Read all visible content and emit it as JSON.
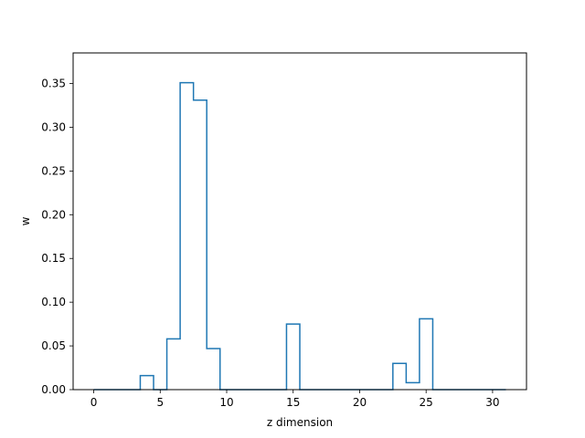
{
  "chart_data": {
    "type": "line",
    "style": "step",
    "xlabel": "z dimension",
    "ylabel": "w",
    "xlim": [
      -1.55,
      32.55
    ],
    "ylim": [
      0,
      0.385
    ],
    "xticks": [
      0,
      5,
      10,
      15,
      20,
      25,
      30
    ],
    "xtick_labels": [
      "0",
      "5",
      "10",
      "15",
      "20",
      "25",
      "30"
    ],
    "yticks": [
      0.0,
      0.05,
      0.1,
      0.15,
      0.2,
      0.25,
      0.3,
      0.35
    ],
    "ytick_labels": [
      "0.00",
      "0.05",
      "0.10",
      "0.15",
      "0.20",
      "0.25",
      "0.30",
      "0.35"
    ],
    "grid": false,
    "line_color": "#1f77b4",
    "x": [
      0,
      1,
      2,
      3,
      4,
      5,
      6,
      7,
      8,
      9,
      10,
      11,
      12,
      13,
      14,
      15,
      16,
      17,
      18,
      19,
      20,
      21,
      22,
      23,
      24,
      25,
      26,
      27,
      28,
      29,
      30,
      31
    ],
    "values": [
      0,
      0,
      0,
      0,
      0.016,
      0,
      0.058,
      0.351,
      0.331,
      0.047,
      0,
      0,
      0,
      0,
      0,
      0.075,
      0,
      0,
      0,
      0,
      0,
      0,
      0,
      0.03,
      0.008,
      0.081,
      0,
      0,
      0,
      0,
      0,
      0
    ]
  }
}
